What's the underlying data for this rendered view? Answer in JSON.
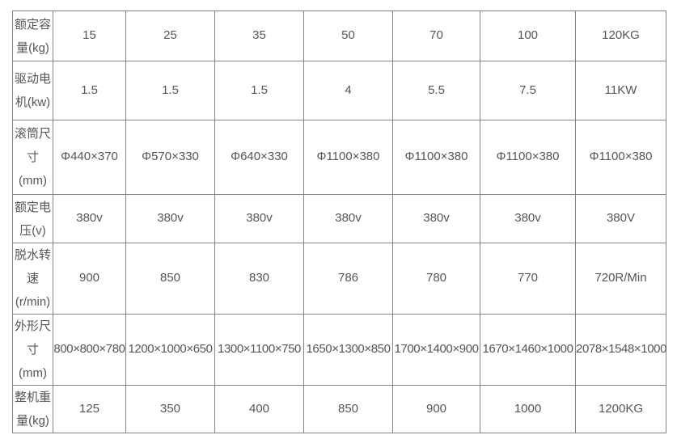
{
  "table": {
    "colors": {
      "border": "#848484",
      "text": "#555555",
      "background": "#ffffff"
    },
    "rows": [
      {
        "label": "额定容\n量(kg)",
        "values": [
          "15",
          "25",
          "35",
          "50",
          "70",
          "100",
          "120KG"
        ]
      },
      {
        "label": "驱动电\n机(kw)",
        "values": [
          "1.5",
          "1.5",
          "1.5",
          "4",
          "5.5",
          "7.5",
          "11KW"
        ]
      },
      {
        "label": "滚筒尺\n寸\n(mm)",
        "values": [
          "Φ440×370",
          "Φ570×330",
          "Φ640×330",
          "Φ1100×380",
          "Φ1100×380",
          "Φ1100×380",
          "Φ1100×380"
        ]
      },
      {
        "label": "额定电\n压(v)",
        "values": [
          "380v",
          "380v",
          "380v",
          "380v",
          "380v",
          "380v",
          "380V"
        ]
      },
      {
        "label": "脱水转\n速\n(r/min)",
        "values": [
          "900",
          "850",
          "830",
          "786",
          "780",
          "770",
          "720R/Min"
        ]
      },
      {
        "label": "外形尺\n寸\n(mm)",
        "values": [
          "800×800×780",
          "1200×1000×650",
          "1300×1100×750",
          "1650×1300×850",
          "1700×1400×900",
          "1670×1460×1000",
          "2078×1548×1000"
        ]
      },
      {
        "label": "整机重\n量(kg)",
        "values": [
          "125",
          "350",
          "400",
          "850",
          "900",
          "1000",
          "1200KG"
        ]
      }
    ]
  }
}
